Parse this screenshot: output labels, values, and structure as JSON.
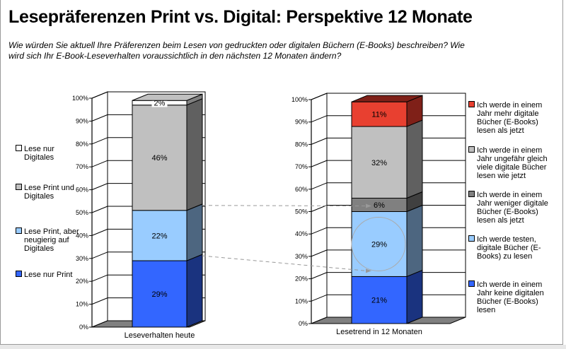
{
  "title": "Lesepräferenzen Print vs. Digital: Perspektive 12 Monate",
  "subtitle": "Wie würden Sie aktuell Ihre Präferenzen beim Lesen von gedruckten oder digitalen Büchern (E-Books) beschreiben? Wie wird sich Ihr E-Book-Leseverhalten voraussichtlich in den nächsten 12 Monaten ändern?",
  "chart_data": [
    {
      "type": "bar",
      "stacked": true,
      "categories": [
        "Leseverhalten heute"
      ],
      "yticks": [
        "0%",
        "10%",
        "20%",
        "30%",
        "40%",
        "50%",
        "60%",
        "70%",
        "80%",
        "90%",
        "100%"
      ],
      "ylim": [
        0,
        100
      ],
      "legend_position": "left",
      "series": [
        {
          "name": "Lese nur Print",
          "value": 29,
          "label": "29%",
          "color": "#3366ff",
          "side": "#1a337f"
        },
        {
          "name": "Lese Print, aber neugierig auf Digitales",
          "value": 22,
          "label": "22%",
          "color": "#99ccff",
          "side": "#4d6680"
        },
        {
          "name": "Lese Print und Digitales",
          "value": 46,
          "label": "46%",
          "color": "#c0c0c0",
          "side": "#606060"
        },
        {
          "name": "Lese nur Digitales",
          "value": 2,
          "label": "2%",
          "color": "#ffffff",
          "side": "#808080"
        }
      ]
    },
    {
      "type": "bar",
      "stacked": true,
      "categories": [
        "Lesetrend in 12 Monaten"
      ],
      "yticks": [
        "0%",
        "10%",
        "20%",
        "30%",
        "40%",
        "50%",
        "60%",
        "70%",
        "80%",
        "90%",
        "100%"
      ],
      "ylim": [
        0,
        100
      ],
      "legend_position": "right",
      "series": [
        {
          "name": "Ich werde in einem Jahr keine digitalen Bücher (E-Books) lesen",
          "value": 21,
          "label": "21%",
          "color": "#3366ff",
          "side": "#1a337f"
        },
        {
          "name": "Ich werde testen, digitale Bücher (E-Books) zu lesen",
          "value": 29,
          "label": "29%",
          "color": "#99ccff",
          "side": "#4d6680"
        },
        {
          "name": "Ich werde in einem Jahr weniger digitale Bücher (E-Books) lesen als jetzt",
          "value": 6,
          "label": "6%",
          "color": "#808080",
          "side": "#404040"
        },
        {
          "name": "Ich werde in einem Jahr ungefähr gleich viele digitale Bücher lesen wie jetzt",
          "value": 32,
          "label": "32%",
          "color": "#c0c0c0",
          "side": "#606060"
        },
        {
          "name": "Ich werde in einem Jahr mehr digitale Bücher (E-Books) lesen als jetzt",
          "value": 11,
          "label": "11%",
          "color": "#e84030",
          "side": "#7f2018"
        }
      ]
    }
  ]
}
